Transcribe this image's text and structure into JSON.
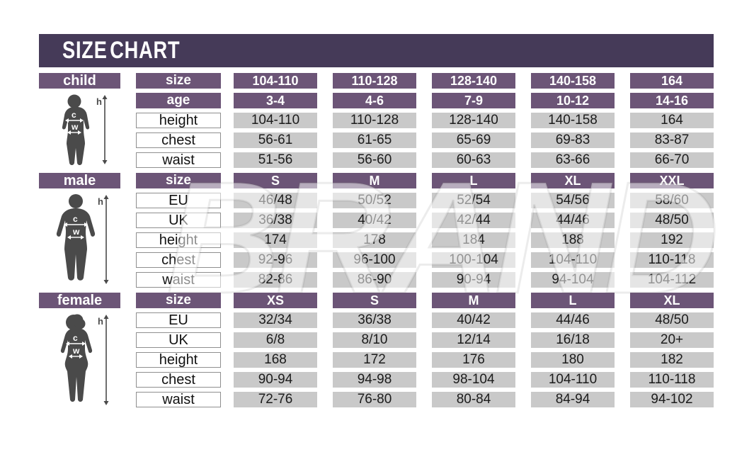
{
  "page": {
    "title": "SIZE CHART"
  },
  "watermark": {
    "text": "BRAND"
  },
  "colors": {
    "title_bar": "#453a58",
    "header_purple": "#6c5577",
    "value_gray": "#c9c9c9",
    "silhouette_gray": "#4a4a4a",
    "label_border": "#8f8f8f"
  },
  "figures": {
    "height_label": "h",
    "chest_label": "c",
    "waist_label": "w"
  },
  "chart_data": [
    {
      "type": "table",
      "name": "child",
      "label": "child",
      "rows": [
        {
          "label": "size",
          "style": "purple",
          "values": [
            "104-110",
            "110-128",
            "128-140",
            "140-158",
            "164"
          ]
        },
        {
          "label": "age",
          "style": "purple",
          "values": [
            "3-4",
            "4-6",
            "7-9",
            "10-12",
            "14-16"
          ]
        },
        {
          "label": "height",
          "style": "plain",
          "values": [
            "104-110",
            "110-128",
            "128-140",
            "140-158",
            "164"
          ]
        },
        {
          "label": "chest",
          "style": "plain",
          "values": [
            "56-61",
            "61-65",
            "65-69",
            "69-83",
            "83-87"
          ]
        },
        {
          "label": "waist",
          "style": "plain",
          "values": [
            "51-56",
            "56-60",
            "60-63",
            "63-66",
            "66-70"
          ]
        }
      ]
    },
    {
      "type": "table",
      "name": "male",
      "label": "male",
      "rows": [
        {
          "label": "size",
          "style": "purple",
          "values": [
            "S",
            "M",
            "L",
            "XL",
            "XXL"
          ]
        },
        {
          "label": "EU",
          "style": "plain",
          "values": [
            "46/48",
            "50/52",
            "52/54",
            "54/56",
            "58/60"
          ]
        },
        {
          "label": "UK",
          "style": "plain",
          "values": [
            "36/38",
            "40/42",
            "42/44",
            "44/46",
            "48/50"
          ]
        },
        {
          "label": "height",
          "style": "plain",
          "values": [
            "174",
            "178",
            "184",
            "188",
            "192"
          ]
        },
        {
          "label": "chest",
          "style": "plain",
          "values": [
            "92-96",
            "96-100",
            "100-104",
            "104-110",
            "110-118"
          ]
        },
        {
          "label": "waist",
          "style": "plain",
          "values": [
            "82-86",
            "86-90",
            "90-94",
            "94-104",
            "104-112"
          ]
        }
      ]
    },
    {
      "type": "table",
      "name": "female",
      "label": "female",
      "rows": [
        {
          "label": "size",
          "style": "purple",
          "values": [
            "XS",
            "S",
            "M",
            "L",
            "XL"
          ]
        },
        {
          "label": "EU",
          "style": "plain",
          "values": [
            "32/34",
            "36/38",
            "40/42",
            "44/46",
            "48/50"
          ]
        },
        {
          "label": "UK",
          "style": "plain",
          "values": [
            "6/8",
            "8/10",
            "12/14",
            "16/18",
            "20+"
          ]
        },
        {
          "label": "height",
          "style": "plain",
          "values": [
            "168",
            "172",
            "176",
            "180",
            "182"
          ]
        },
        {
          "label": "chest",
          "style": "plain",
          "values": [
            "90-94",
            "94-98",
            "98-104",
            "104-110",
            "110-118"
          ]
        },
        {
          "label": "waist",
          "style": "plain",
          "values": [
            "72-76",
            "76-80",
            "80-84",
            "84-94",
            "94-102"
          ]
        }
      ]
    }
  ]
}
